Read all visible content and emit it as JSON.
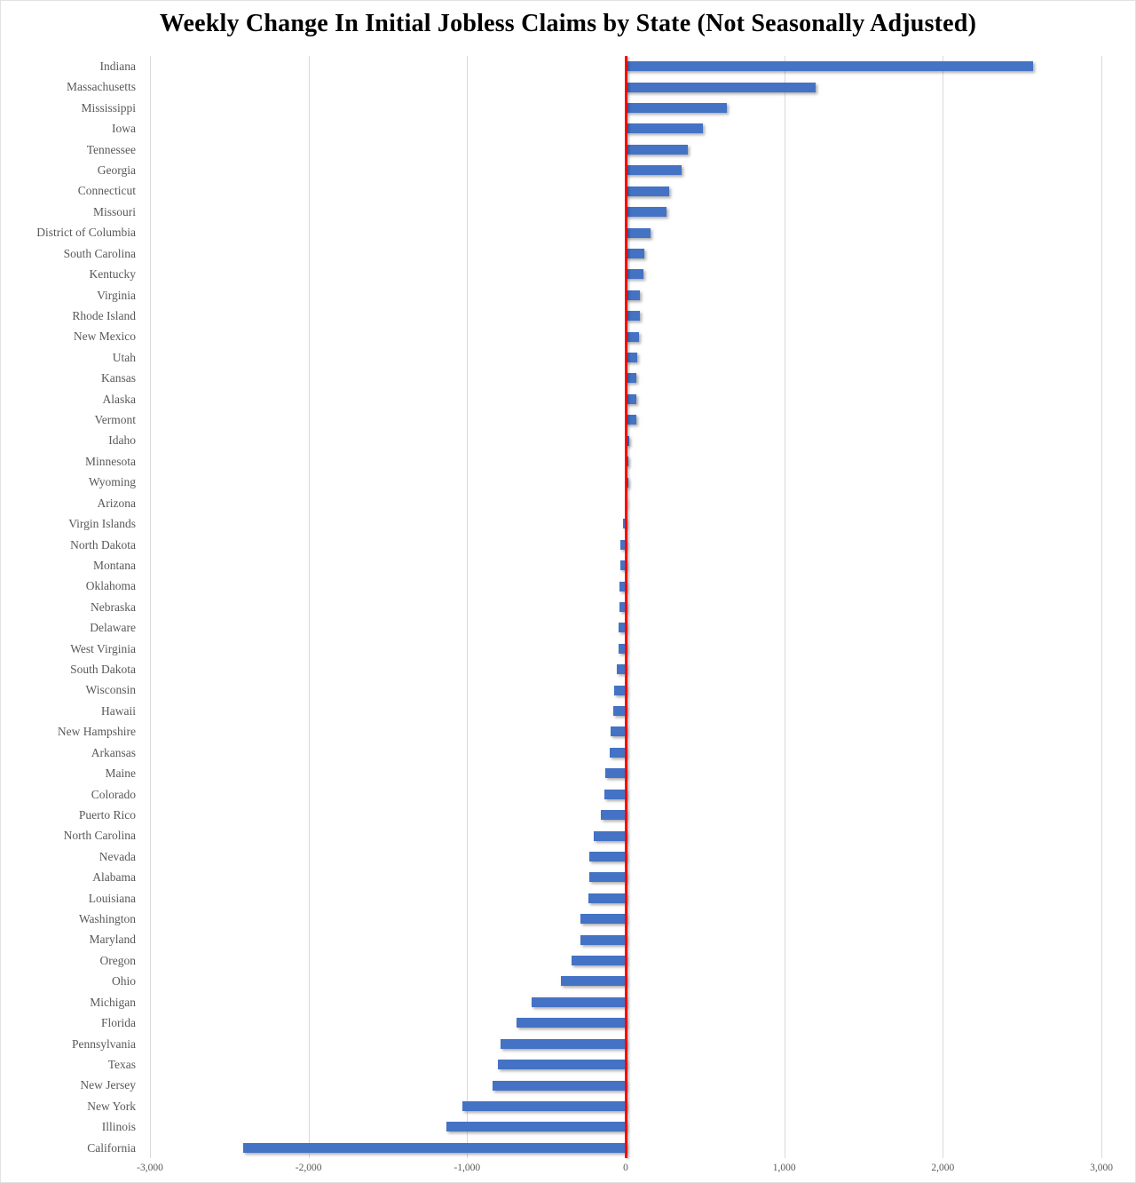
{
  "title": "Weekly Change In Initial Jobless Claims by State (Not Seasonally Adjusted)",
  "chart_data": {
    "type": "bar",
    "orientation": "horizontal",
    "title": "Weekly Change In Initial Jobless Claims by State (Not Seasonally Adjusted)",
    "xlabel": "",
    "ylabel": "",
    "xlim": [
      -3000,
      3000
    ],
    "grid": "vertical-gridlines-on",
    "legend": "none",
    "zero_line_color": "#FE0000",
    "bar_color": "#4472C4",
    "gridline_color": "#D9D9D9",
    "label_color": "#595959",
    "title_color": "#000000",
    "background_color": "#FFFFFF",
    "x_ticks": [
      {
        "label": "-3,000",
        "value": -3000
      },
      {
        "label": "-2,000",
        "value": -2000
      },
      {
        "label": "-1,000",
        "value": -1000
      },
      {
        "label": "0",
        "value": 0
      },
      {
        "label": "1,000",
        "value": 1000
      },
      {
        "label": "2,000",
        "value": 2000
      },
      {
        "label": "3,000",
        "value": 3000
      }
    ],
    "categories": [
      "Indiana",
      "Massachusetts",
      "Mississippi",
      "Iowa",
      "Tennessee",
      "Georgia",
      "Connecticut",
      "Missouri",
      "District of Columbia",
      "South Carolina",
      "Kentucky",
      "Virginia",
      "Rhode Island",
      "New Mexico",
      "Utah",
      "Kansas",
      "Alaska",
      "Vermont",
      "Idaho",
      "Minnesota",
      "Wyoming",
      "Arizona",
      "Virgin Islands",
      "North Dakota",
      "Montana",
      "Oklahoma",
      "Nebraska",
      "Delaware",
      "West Virginia",
      "South Dakota",
      "Wisconsin",
      "Hawaii",
      "New Hampshire",
      "Arkansas",
      "Maine",
      "Colorado",
      "Puerto Rico",
      "North Carolina",
      "Nevada",
      "Alabama",
      "Louisiana",
      "Washington",
      "Maryland",
      "Oregon",
      "Ohio",
      "Michigan",
      "Florida",
      "Pennsylvania",
      "Texas",
      "New Jersey",
      "New York",
      "Illinois",
      "California"
    ],
    "values": [
      2570,
      1200,
      640,
      485,
      390,
      355,
      275,
      260,
      155,
      116,
      112,
      90,
      87,
      85,
      71,
      67,
      66,
      65,
      20,
      16,
      14,
      4,
      -14,
      -32,
      -36,
      -38,
      -41,
      -44,
      -46,
      -56,
      -72,
      -76,
      -96,
      -101,
      -131,
      -136,
      -158,
      -201,
      -229,
      -232,
      -236,
      -283,
      -287,
      -339,
      -410,
      -596,
      -691,
      -789,
      -805,
      -839,
      -1029,
      -1131,
      -2411
    ]
  }
}
